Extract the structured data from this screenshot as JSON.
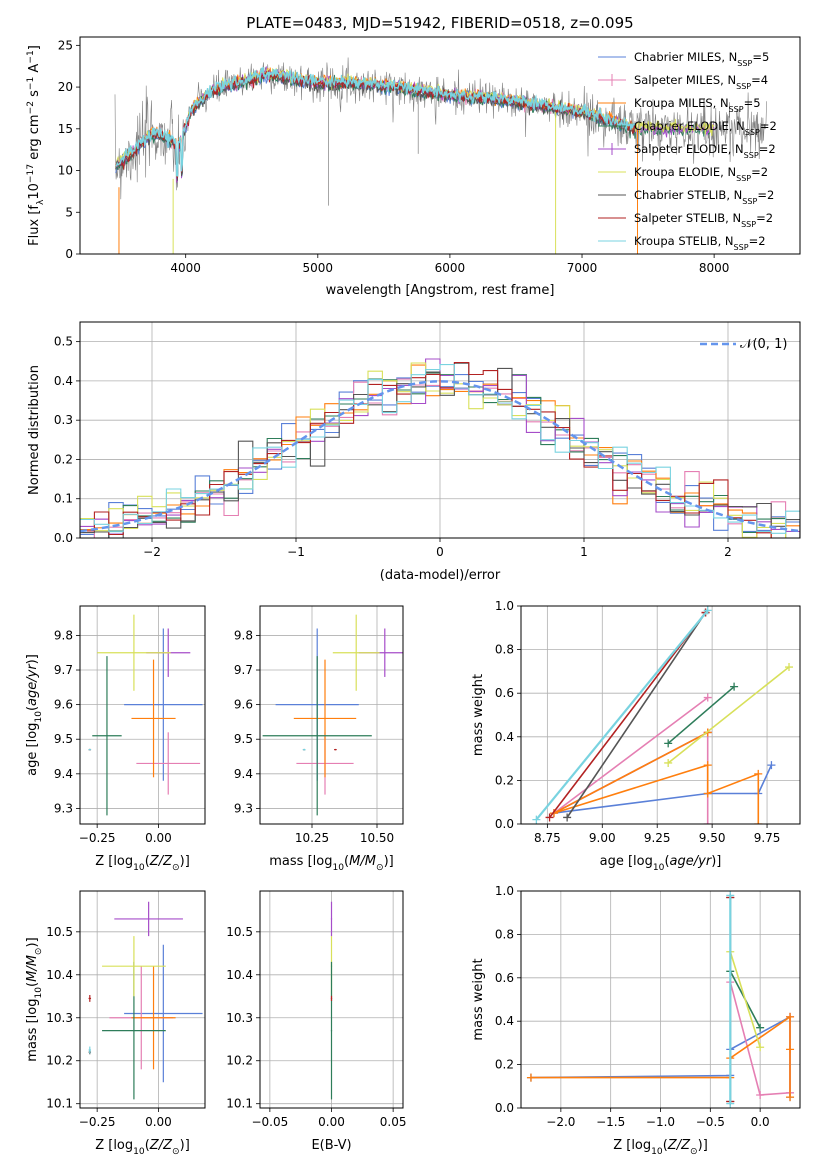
{
  "colors": {
    "chabrier_miles": "#5a80d8",
    "salpeter_miles": "#e57fb3",
    "kroupa_miles": "#ff7f0e",
    "chabrier_elodie": "#2e7d5a",
    "salpeter_elodie": "#a64dc9",
    "kroupa_elodie": "#d8e05a",
    "chabrier_stelib": "#555555",
    "salpeter_stelib": "#b22222",
    "kroupa_stelib": "#79d3e0"
  },
  "chart_data": [
    {
      "id": "spectrum",
      "type": "line",
      "title": "PLATE=0483, MJD=51942, FIBERID=0518, z=0.095",
      "xlabel": "wavelength [Angstrom, rest frame]",
      "ylabel": "Flux [f_λ10^-17 erg cm^-2 s^-1 A^-1]",
      "xlim": [
        3200,
        8650
      ],
      "ylim": [
        0,
        26
      ],
      "xticks": [
        4000,
        5000,
        6000,
        7000,
        8000
      ],
      "yticks": [
        0,
        5,
        10,
        15,
        20,
        25
      ],
      "legend_position": "top-right",
      "legend": [
        "Chabrier MILES, N_SSP=5",
        "Salpeter MILES, N_SSP=4",
        "Kroupa MILES, N_SSP=5",
        "Chabrier ELODIE, N_SSP=2",
        "Salpeter ELODIE, N_SSP=2",
        "Kroupa ELODIE, N_SSP=2",
        "Chabrier STELIB, N_SSP=2",
        "Salpeter STELIB, N_SSP=2",
        "Kroupa STELIB, N_SSP=2"
      ],
      "continuum": {
        "x": [
          3460,
          3550,
          3650,
          3750,
          3850,
          3950,
          4050,
          4200,
          4400,
          4600,
          4800,
          5000,
          5200,
          5400,
          5600,
          5800,
          6000,
          6200,
          6400,
          6600,
          6800,
          7000,
          7200,
          7400
        ],
        "y": [
          10.5,
          11.5,
          13,
          14.5,
          14,
          13,
          17.5,
          19.5,
          20.5,
          21.5,
          21,
          20.5,
          20.5,
          20.3,
          20,
          19.5,
          19,
          18.8,
          18.5,
          18,
          17.5,
          17,
          16,
          15
        ]
      },
      "grid": false
    },
    {
      "id": "residuals",
      "type": "histogram",
      "xlabel": "(data-model)/error",
      "ylabel": "Normed distribution",
      "xlim": [
        -2.5,
        2.5
      ],
      "ylim": [
        0,
        0.55
      ],
      "xticks": [
        -2,
        -1,
        0,
        1,
        2
      ],
      "xtick_labels": [
        "−2",
        "−1",
        "0",
        "1",
        "2"
      ],
      "yticks": [
        0,
        0.1,
        0.2,
        0.3,
        0.4,
        0.5
      ],
      "ytick_labels": [
        "0.0",
        "0.1",
        "0.2",
        "0.3",
        "0.4",
        "0.5"
      ],
      "bin_width": 0.1,
      "legend": [
        "N(0,1)"
      ],
      "legend_position": "top-right",
      "grid": true
    },
    {
      "id": "age_vs_Z",
      "type": "errorbar",
      "xlabel": "Z [log10(Z/Z⊙)]",
      "ylabel": "age [log10(age/yr)]",
      "xlim": [
        -0.32,
        0.19
      ],
      "ylim": [
        9.255,
        9.885
      ],
      "xticks": [
        -0.25,
        0.0
      ],
      "xtick_labels": [
        "−0.25",
        "0.00"
      ],
      "yticks": [
        9.3,
        9.4,
        9.5,
        9.6,
        9.7,
        9.8
      ],
      "ytick_labels": [
        "9.3",
        "9.4",
        "9.5",
        "9.6",
        "9.7",
        "9.8"
      ],
      "points": [
        {
          "color": "chabrier_miles",
          "x": 0.02,
          "xe": 0.16,
          "y": 9.6,
          "ye": 0.22
        },
        {
          "color": "salpeter_miles",
          "x": 0.04,
          "xe": 0.13,
          "y": 9.43,
          "ye": 0.09
        },
        {
          "color": "kroupa_miles",
          "x": -0.02,
          "xe": 0.09,
          "y": 9.56,
          "ye": 0.17
        },
        {
          "color": "chabrier_elodie",
          "x": -0.21,
          "xe": 0.06,
          "y": 9.51,
          "ye": 0.23
        },
        {
          "color": "salpeter_elodie",
          "x": 0.04,
          "xe": 0.09,
          "y": 9.75,
          "ye": 0.07
        },
        {
          "color": "kroupa_elodie",
          "x": -0.1,
          "xe": 0.15,
          "y": 9.75,
          "ye": 0.11
        },
        {
          "color": "chabrier_stelib",
          "x": -0.28,
          "xe": 0.005,
          "y": 9.47,
          "ye": 0.002
        },
        {
          "color": "salpeter_stelib",
          "x": -0.28,
          "xe": 0.005,
          "y": 9.47,
          "ye": 0.002
        },
        {
          "color": "kroupa_stelib",
          "x": -0.28,
          "xe": 0.005,
          "y": 9.47,
          "ye": 0.002
        }
      ],
      "grid": true
    },
    {
      "id": "age_vs_mass",
      "type": "errorbar",
      "xlabel": "mass [log10(M/M⊙)]",
      "ylabel": "",
      "xlim": [
        10.05,
        10.6
      ],
      "ylim": [
        9.255,
        9.885
      ],
      "xticks": [
        10.25,
        10.5
      ],
      "xtick_labels": [
        "10.25",
        "10.50"
      ],
      "yticks": [
        9.3,
        9.4,
        9.5,
        9.6,
        9.7,
        9.8
      ],
      "ytick_labels": [
        "9.3",
        "9.4",
        "9.5",
        "9.6",
        "9.7",
        "9.8"
      ],
      "points": [
        {
          "color": "chabrier_miles",
          "x": 10.27,
          "xe": 0.16,
          "y": 9.6,
          "ye": 0.22
        },
        {
          "color": "salpeter_miles",
          "x": 10.3,
          "xe": 0.11,
          "y": 9.43,
          "ye": 0.09
        },
        {
          "color": "kroupa_miles",
          "x": 10.3,
          "xe": 0.12,
          "y": 9.56,
          "ye": 0.17
        },
        {
          "color": "chabrier_elodie",
          "x": 10.27,
          "xe": 0.21,
          "y": 9.51,
          "ye": 0.23
        },
        {
          "color": "salpeter_elodie",
          "x": 10.53,
          "xe": 0.1,
          "y": 9.75,
          "ye": 0.07
        },
        {
          "color": "kroupa_elodie",
          "x": 10.42,
          "xe": 0.09,
          "y": 9.75,
          "ye": 0.11
        },
        {
          "color": "chabrier_stelib",
          "x": 10.22,
          "xe": 0.005,
          "y": 9.47,
          "ye": 0.002
        },
        {
          "color": "salpeter_stelib",
          "x": 10.34,
          "xe": 0.005,
          "y": 9.47,
          "ye": 0.002
        },
        {
          "color": "kroupa_stelib",
          "x": 10.22,
          "xe": 0.005,
          "y": 9.47,
          "ye": 0.002
        }
      ],
      "grid": true
    },
    {
      "id": "weight_vs_age",
      "type": "line",
      "xlabel": "age [log10(age/yr)]",
      "ylabel": "mass weight",
      "xlim": [
        8.63,
        9.9
      ],
      "ylim": [
        0,
        1
      ],
      "xticks": [
        8.75,
        9.0,
        9.25,
        9.5,
        9.75
      ],
      "xtick_labels": [
        "8.75",
        "9.00",
        "9.25",
        "9.50",
        "9.75"
      ],
      "yticks": [
        0,
        0.2,
        0.4,
        0.6,
        0.8,
        1.0
      ],
      "ytick_labels": [
        "0.0",
        "0.2",
        "0.4",
        "0.6",
        "0.8",
        "1.0"
      ],
      "series": [
        {
          "color": "chabrier_miles",
          "x": [
            9.77,
            9.71,
            9.48,
            8.78,
            9.48
          ],
          "y": [
            0.27,
            0.14,
            0.14,
            0.05,
            0.42
          ]
        },
        {
          "color": "salpeter_miles",
          "x": [
            9.48,
            8.78,
            9.48,
            9.48
          ],
          "y": [
            0.58,
            0.05,
            0.42,
            0.0
          ]
        },
        {
          "color": "kroupa_miles",
          "x": [
            9.71,
            9.71,
            9.48,
            9.48,
            8.78,
            9.48
          ],
          "y": [
            0.0,
            0.23,
            0.14,
            0.27,
            0.05,
            0.42
          ]
        },
        {
          "color": "chabrier_elodie",
          "x": [
            9.6,
            9.3
          ],
          "y": [
            0.63,
            0.37
          ]
        },
        {
          "color": "kroupa_elodie",
          "x": [
            9.85,
            9.3
          ],
          "y": [
            0.72,
            0.28
          ]
        },
        {
          "color": "chabrier_stelib",
          "x": [
            9.47,
            8.84
          ],
          "y": [
            0.97,
            0.03
          ]
        },
        {
          "color": "salpeter_stelib",
          "x": [
            9.47,
            8.76
          ],
          "y": [
            0.97,
            0.03
          ]
        },
        {
          "color": "kroupa_stelib",
          "x": [
            9.48,
            8.7
          ],
          "y": [
            0.98,
            0.02
          ]
        }
      ],
      "grid": true
    },
    {
      "id": "mass_vs_Z",
      "type": "errorbar",
      "xlabel": "Z [log10(Z/Z⊙)]",
      "ylabel": "mass [log10(M/M⊙)]",
      "xlim": [
        -0.32,
        0.19
      ],
      "ylim": [
        10.09,
        10.595
      ],
      "xticks": [
        -0.25,
        0.0
      ],
      "xtick_labels": [
        "−0.25",
        "0.00"
      ],
      "yticks": [
        10.1,
        10.2,
        10.3,
        10.4,
        10.5
      ],
      "ytick_labels": [
        "10.1",
        "10.2",
        "10.3",
        "10.4",
        "10.5"
      ],
      "points": [
        {
          "color": "chabrier_miles",
          "x": 0.02,
          "xe": 0.16,
          "y": 10.31,
          "ye": 0.16
        },
        {
          "color": "salpeter_miles",
          "x": -0.07,
          "xe": 0.13,
          "y": 10.3,
          "ye": 0.12
        },
        {
          "color": "kroupa_miles",
          "x": -0.02,
          "xe": 0.09,
          "y": 10.3,
          "ye": 0.12
        },
        {
          "color": "chabrier_elodie",
          "x": -0.1,
          "xe": 0.13,
          "y": 10.27,
          "ye": 0.16
        },
        {
          "color": "salpeter_elodie",
          "x": -0.04,
          "xe": 0.14,
          "y": 10.53,
          "ye": 0.04
        },
        {
          "color": "kroupa_elodie",
          "x": -0.1,
          "xe": 0.13,
          "y": 10.42,
          "ye": 0.07
        },
        {
          "color": "chabrier_stelib",
          "x": -0.28,
          "xe": 0.005,
          "y": 10.22,
          "ye": 0.005
        },
        {
          "color": "salpeter_stelib",
          "x": -0.28,
          "xe": 0.005,
          "y": 10.345,
          "ye": 0.008
        },
        {
          "color": "kroupa_stelib",
          "x": -0.28,
          "xe": 0.005,
          "y": 10.225,
          "ye": 0.008
        }
      ],
      "grid": true
    },
    {
      "id": "mass_vs_ebv",
      "type": "errorbar",
      "xlabel": "E(B-V)",
      "ylabel": "",
      "xlim": [
        -0.058,
        0.058
      ],
      "ylim": [
        10.09,
        10.595
      ],
      "xticks": [
        -0.05,
        0.0,
        0.05
      ],
      "xtick_labels": [
        "−0.05",
        "0.00",
        "0.05"
      ],
      "yticks": [
        10.1,
        10.2,
        10.3,
        10.4,
        10.5
      ],
      "ytick_labels": [
        "10.1",
        "10.2",
        "10.3",
        "10.4",
        "10.5"
      ],
      "points": [
        {
          "color": "salpeter_elodie",
          "x": 0.0,
          "xe": 0.0005,
          "y": 10.53,
          "ye": 0.04
        },
        {
          "color": "kroupa_elodie",
          "x": 0.0,
          "xe": 0.0005,
          "y": 10.42,
          "ye": 0.07
        },
        {
          "color": "chabrier_elodie",
          "x": 0.0,
          "xe": 0.0005,
          "y": 10.27,
          "ye": 0.16
        },
        {
          "color": "salpeter_stelib",
          "x": 0.0,
          "xe": 0.0005,
          "y": 10.345,
          "ye": 0.006
        }
      ],
      "grid": true
    },
    {
      "id": "weight_vs_Z",
      "type": "line",
      "xlabel": "Z [log10(Z/Z⊙)]",
      "ylabel": "mass weight",
      "xlim": [
        -2.4,
        0.4
      ],
      "ylim": [
        0,
        1
      ],
      "xticks": [
        -2.0,
        -1.5,
        -1.0,
        -0.5,
        0.0
      ],
      "xtick_labels": [
        "−2.0",
        "−1.5",
        "−1.0",
        "−0.5",
        "0.0"
      ],
      "yticks": [
        0,
        0.2,
        0.4,
        0.6,
        0.8,
        1.0
      ],
      "ytick_labels": [
        "0.0",
        "0.2",
        "0.4",
        "0.6",
        "0.8",
        "1.0"
      ],
      "series": [
        {
          "color": "chabrier_miles",
          "x": [
            -2.3,
            -0.3,
            -0.3,
            0.3,
            0.3
          ],
          "y": [
            0.14,
            0.15,
            0.27,
            0.42,
            0.05
          ]
        },
        {
          "color": "salpeter_miles",
          "x": [
            -0.3,
            0.0,
            0.3,
            0.3
          ],
          "y": [
            0.58,
            0.06,
            0.07,
            0.42
          ]
        },
        {
          "color": "kroupa_miles",
          "x": [
            -2.3,
            -0.3,
            -0.3,
            0.3,
            0.3,
            0.3
          ],
          "y": [
            0.14,
            0.14,
            0.23,
            0.42,
            0.27,
            0.05
          ]
        },
        {
          "color": "chabrier_elodie",
          "x": [
            -0.3,
            0.0
          ],
          "y": [
            0.63,
            0.37
          ]
        },
        {
          "color": "kroupa_elodie",
          "x": [
            -0.3,
            0.0
          ],
          "y": [
            0.72,
            0.28
          ]
        },
        {
          "color": "chabrier_stelib",
          "x": [
            -0.3,
            -0.3
          ],
          "y": [
            0.97,
            0.03
          ]
        },
        {
          "color": "salpeter_stelib",
          "x": [
            -0.3,
            -0.3
          ],
          "y": [
            0.97,
            0.03
          ]
        },
        {
          "color": "kroupa_stelib",
          "x": [
            -0.3,
            -0.3
          ],
          "y": [
            0.98,
            0.02
          ]
        }
      ],
      "grid": true
    }
  ]
}
